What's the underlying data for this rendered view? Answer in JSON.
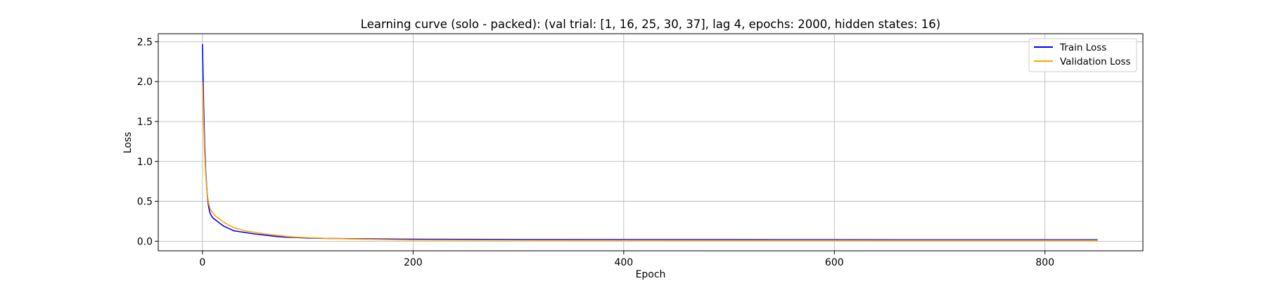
{
  "chart_data": {
    "type": "line",
    "title": "Learning curve (solo - packed): (val trial: [1, 16, 25, 30, 37], lag 4, epochs: 2000, hidden states: 16)",
    "xlabel": "Epoch",
    "ylabel": "Loss",
    "xlim": [
      -42,
      893
    ],
    "ylim": [
      -0.12,
      2.6
    ],
    "xticks": [
      0,
      200,
      400,
      600,
      800
    ],
    "yticks": [
      0.0,
      0.5,
      1.0,
      1.5,
      2.0,
      2.5
    ],
    "xtick_labels": [
      "0",
      "200",
      "400",
      "600",
      "800"
    ],
    "ytick_labels": [
      "0.0",
      "0.5",
      "1.0",
      "1.5",
      "2.0",
      "2.5"
    ],
    "grid": true,
    "legend_position": "top-right",
    "series": [
      {
        "name": "Train Loss",
        "color": "#0000ff",
        "x": [
          0,
          1,
          2,
          3,
          4,
          5,
          6,
          7,
          8,
          9,
          10,
          12,
          14,
          16,
          18,
          20,
          25,
          30,
          35,
          40,
          50,
          60,
          70,
          80,
          90,
          100,
          120,
          150,
          200,
          300,
          400,
          500,
          600,
          700,
          800,
          850
        ],
        "values": [
          2.47,
          1.75,
          1.25,
          0.9,
          0.68,
          0.52,
          0.42,
          0.36,
          0.33,
          0.31,
          0.29,
          0.27,
          0.25,
          0.23,
          0.21,
          0.19,
          0.16,
          0.13,
          0.12,
          0.11,
          0.09,
          0.075,
          0.06,
          0.05,
          0.045,
          0.04,
          0.035,
          0.03,
          0.025,
          0.022,
          0.02,
          0.02,
          0.019,
          0.018,
          0.018,
          0.018
        ]
      },
      {
        "name": "Validation Loss",
        "color": "#ffa500",
        "x": [
          0,
          1,
          2,
          3,
          4,
          5,
          6,
          7,
          8,
          9,
          10,
          12,
          14,
          16,
          18,
          20,
          25,
          30,
          35,
          40,
          50,
          60,
          70,
          80,
          90,
          100,
          120,
          150,
          200,
          300,
          400,
          500,
          600,
          700,
          800,
          850
        ],
        "values": [
          2.0,
          1.5,
          1.1,
          0.85,
          0.65,
          0.55,
          0.47,
          0.42,
          0.39,
          0.37,
          0.35,
          0.32,
          0.3,
          0.28,
          0.26,
          0.24,
          0.2,
          0.17,
          0.15,
          0.13,
          0.11,
          0.09,
          0.075,
          0.06,
          0.05,
          0.045,
          0.035,
          0.025,
          0.015,
          0.012,
          0.011,
          0.01,
          0.01,
          0.009,
          0.009,
          0.009
        ]
      }
    ]
  }
}
